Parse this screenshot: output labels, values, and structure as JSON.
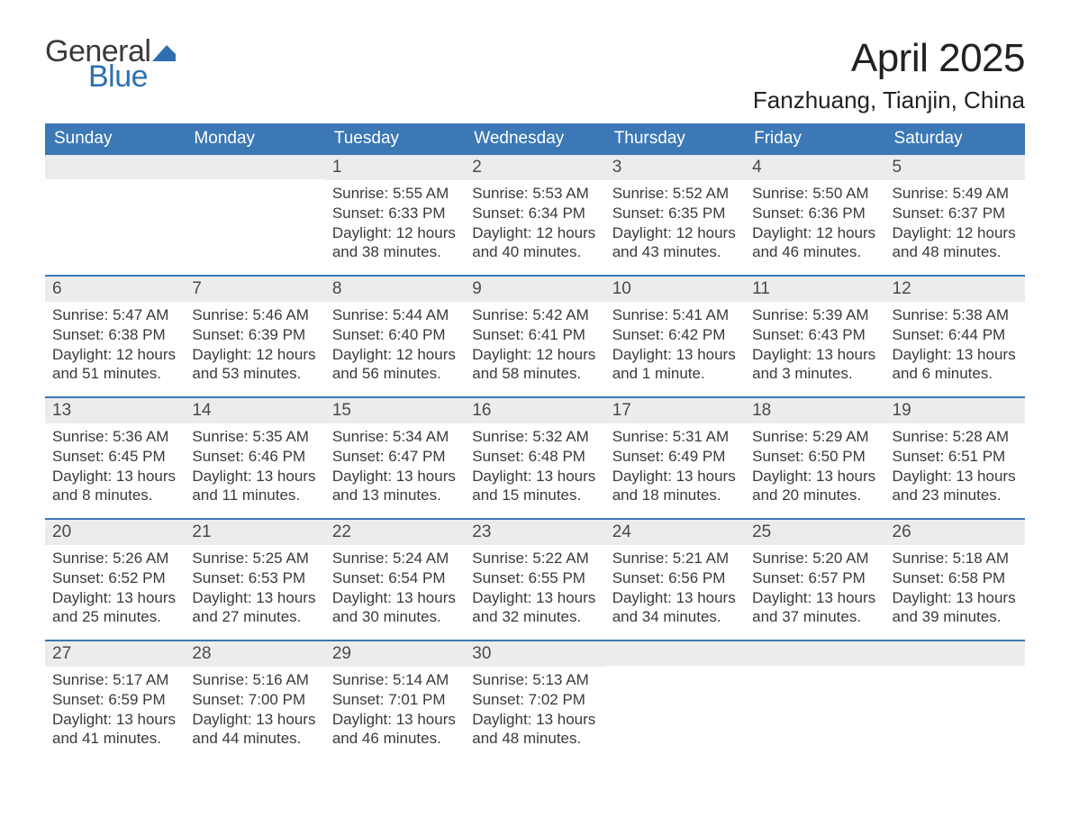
{
  "logo": {
    "general": "General",
    "blue": "Blue",
    "flag_color": "#2f6fb0"
  },
  "header": {
    "month": "April 2025",
    "location": "Fanzhuang, Tianjin, China"
  },
  "colors": {
    "header_bg": "#3b78b5",
    "header_text": "#ffffff",
    "daynum_bg": "#ececec",
    "week_border": "#3b78b5",
    "body_text": "#3a3a3a",
    "background": "#ffffff"
  },
  "typography": {
    "title_fontsize": 44,
    "location_fontsize": 26,
    "dayheader_fontsize": 19,
    "cell_fontsize": 17
  },
  "labels": {
    "sunrise": "Sunrise: ",
    "sunset": "Sunset: ",
    "daylight": "Daylight: "
  },
  "day_names": [
    "Sunday",
    "Monday",
    "Tuesday",
    "Wednesday",
    "Thursday",
    "Friday",
    "Saturday"
  ],
  "weeks": [
    [
      null,
      null,
      {
        "n": "1",
        "sr": "5:55 AM",
        "ss": "6:33 PM",
        "dl": "12 hours and 38 minutes."
      },
      {
        "n": "2",
        "sr": "5:53 AM",
        "ss": "6:34 PM",
        "dl": "12 hours and 40 minutes."
      },
      {
        "n": "3",
        "sr": "5:52 AM",
        "ss": "6:35 PM",
        "dl": "12 hours and 43 minutes."
      },
      {
        "n": "4",
        "sr": "5:50 AM",
        "ss": "6:36 PM",
        "dl": "12 hours and 46 minutes."
      },
      {
        "n": "5",
        "sr": "5:49 AM",
        "ss": "6:37 PM",
        "dl": "12 hours and 48 minutes."
      }
    ],
    [
      {
        "n": "6",
        "sr": "5:47 AM",
        "ss": "6:38 PM",
        "dl": "12 hours and 51 minutes."
      },
      {
        "n": "7",
        "sr": "5:46 AM",
        "ss": "6:39 PM",
        "dl": "12 hours and 53 minutes."
      },
      {
        "n": "8",
        "sr": "5:44 AM",
        "ss": "6:40 PM",
        "dl": "12 hours and 56 minutes."
      },
      {
        "n": "9",
        "sr": "5:42 AM",
        "ss": "6:41 PM",
        "dl": "12 hours and 58 minutes."
      },
      {
        "n": "10",
        "sr": "5:41 AM",
        "ss": "6:42 PM",
        "dl": "13 hours and 1 minute."
      },
      {
        "n": "11",
        "sr": "5:39 AM",
        "ss": "6:43 PM",
        "dl": "13 hours and 3 minutes."
      },
      {
        "n": "12",
        "sr": "5:38 AM",
        "ss": "6:44 PM",
        "dl": "13 hours and 6 minutes."
      }
    ],
    [
      {
        "n": "13",
        "sr": "5:36 AM",
        "ss": "6:45 PM",
        "dl": "13 hours and 8 minutes."
      },
      {
        "n": "14",
        "sr": "5:35 AM",
        "ss": "6:46 PM",
        "dl": "13 hours and 11 minutes."
      },
      {
        "n": "15",
        "sr": "5:34 AM",
        "ss": "6:47 PM",
        "dl": "13 hours and 13 minutes."
      },
      {
        "n": "16",
        "sr": "5:32 AM",
        "ss": "6:48 PM",
        "dl": "13 hours and 15 minutes."
      },
      {
        "n": "17",
        "sr": "5:31 AM",
        "ss": "6:49 PM",
        "dl": "13 hours and 18 minutes."
      },
      {
        "n": "18",
        "sr": "5:29 AM",
        "ss": "6:50 PM",
        "dl": "13 hours and 20 minutes."
      },
      {
        "n": "19",
        "sr": "5:28 AM",
        "ss": "6:51 PM",
        "dl": "13 hours and 23 minutes."
      }
    ],
    [
      {
        "n": "20",
        "sr": "5:26 AM",
        "ss": "6:52 PM",
        "dl": "13 hours and 25 minutes."
      },
      {
        "n": "21",
        "sr": "5:25 AM",
        "ss": "6:53 PM",
        "dl": "13 hours and 27 minutes."
      },
      {
        "n": "22",
        "sr": "5:24 AM",
        "ss": "6:54 PM",
        "dl": "13 hours and 30 minutes."
      },
      {
        "n": "23",
        "sr": "5:22 AM",
        "ss": "6:55 PM",
        "dl": "13 hours and 32 minutes."
      },
      {
        "n": "24",
        "sr": "5:21 AM",
        "ss": "6:56 PM",
        "dl": "13 hours and 34 minutes."
      },
      {
        "n": "25",
        "sr": "5:20 AM",
        "ss": "6:57 PM",
        "dl": "13 hours and 37 minutes."
      },
      {
        "n": "26",
        "sr": "5:18 AM",
        "ss": "6:58 PM",
        "dl": "13 hours and 39 minutes."
      }
    ],
    [
      {
        "n": "27",
        "sr": "5:17 AM",
        "ss": "6:59 PM",
        "dl": "13 hours and 41 minutes."
      },
      {
        "n": "28",
        "sr": "5:16 AM",
        "ss": "7:00 PM",
        "dl": "13 hours and 44 minutes."
      },
      {
        "n": "29",
        "sr": "5:14 AM",
        "ss": "7:01 PM",
        "dl": "13 hours and 46 minutes."
      },
      {
        "n": "30",
        "sr": "5:13 AM",
        "ss": "7:02 PM",
        "dl": "13 hours and 48 minutes."
      },
      null,
      null,
      null
    ]
  ]
}
